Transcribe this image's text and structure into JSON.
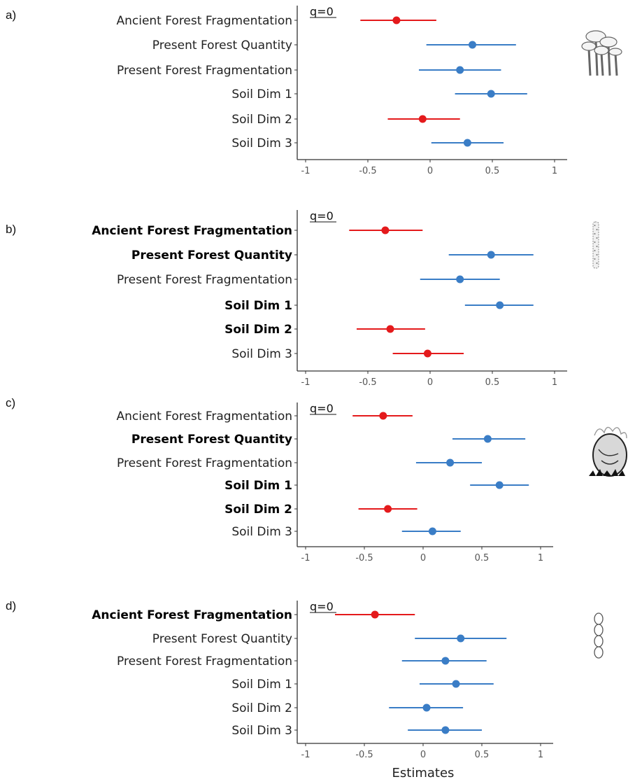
{
  "chart_data": [
    {
      "panel": "a)",
      "type": "scatter",
      "annotation": "q=0",
      "xlim": [
        -1.1,
        1.1
      ],
      "xticks": [
        "-1",
        "-0.5",
        "0",
        "0.5",
        "1"
      ],
      "icon": "mushroom-cluster-icon",
      "series": [
        {
          "label": "Ancient Forest Fragmentation",
          "estimate": -0.27,
          "low": -0.56,
          "high": 0.05,
          "sign": "neg",
          "bold": false
        },
        {
          "label": "Present Forest Quantity",
          "estimate": 0.34,
          "low": -0.03,
          "high": 0.69,
          "sign": "pos",
          "bold": false
        },
        {
          "label": "Present Forest Fragmentation",
          "estimate": 0.24,
          "low": -0.09,
          "high": 0.57,
          "sign": "pos",
          "bold": false
        },
        {
          "label": "Soil Dim 1",
          "estimate": 0.49,
          "low": 0.2,
          "high": 0.78,
          "sign": "pos",
          "bold": false
        },
        {
          "label": "Soil Dim 2",
          "estimate": -0.06,
          "low": -0.34,
          "high": 0.24,
          "sign": "neg",
          "bold": false
        },
        {
          "label": "Soil Dim 3",
          "estimate": 0.3,
          "low": 0.01,
          "high": 0.59,
          "sign": "pos",
          "bold": false
        }
      ]
    },
    {
      "panel": "b)",
      "type": "scatter",
      "annotation": "q=0",
      "xlim": [
        -1.1,
        1.1
      ],
      "xticks": [
        "-1",
        "-0.5",
        "0",
        "0.5",
        "1"
      ],
      "icon": "lichen-strip-icon",
      "series": [
        {
          "label": "Ancient Forest Fragmentation",
          "estimate": -0.36,
          "low": -0.65,
          "high": -0.06,
          "sign": "neg",
          "bold": true
        },
        {
          "label": "Present Forest Quantity",
          "estimate": 0.49,
          "low": 0.15,
          "high": 0.83,
          "sign": "pos",
          "bold": true
        },
        {
          "label": "Present Forest Fragmentation",
          "estimate": 0.24,
          "low": -0.08,
          "high": 0.56,
          "sign": "pos",
          "bold": false
        },
        {
          "label": "Soil Dim 1",
          "estimate": 0.56,
          "low": 0.28,
          "high": 0.83,
          "sign": "pos",
          "bold": true
        },
        {
          "label": "Soil Dim 2",
          "estimate": -0.32,
          "low": -0.59,
          "high": -0.04,
          "sign": "neg",
          "bold": true
        },
        {
          "label": "Soil Dim 3",
          "estimate": -0.02,
          "low": -0.3,
          "high": 0.27,
          "sign": "neg",
          "bold": false
        }
      ]
    },
    {
      "panel": "c)",
      "type": "scatter",
      "annotation": "q=0",
      "xlim": [
        -1.1,
        1.1
      ],
      "xticks": [
        "-1",
        "-0.5",
        "0",
        "0.5",
        "1"
      ],
      "icon": "puffball-fungus-icon",
      "series": [
        {
          "label": "Ancient Forest Fragmentation",
          "estimate": -0.34,
          "low": -0.6,
          "high": -0.09,
          "sign": "neg",
          "bold": false
        },
        {
          "label": "Present Forest Quantity",
          "estimate": 0.55,
          "low": 0.25,
          "high": 0.87,
          "sign": "pos",
          "bold": true
        },
        {
          "label": "Present Forest Fragmentation",
          "estimate": 0.23,
          "low": -0.06,
          "high": 0.5,
          "sign": "pos",
          "bold": false
        },
        {
          "label": "Soil Dim 1",
          "estimate": 0.65,
          "low": 0.4,
          "high": 0.9,
          "sign": "pos",
          "bold": true
        },
        {
          "label": "Soil Dim 2",
          "estimate": -0.3,
          "low": -0.55,
          "high": -0.05,
          "sign": "neg",
          "bold": true
        },
        {
          "label": "Soil Dim 3",
          "estimate": 0.08,
          "low": -0.18,
          "high": 0.32,
          "sign": "pos",
          "bold": false
        }
      ]
    },
    {
      "panel": "d)",
      "type": "scatter",
      "annotation": "q=0",
      "xlim": [
        -1.1,
        1.1
      ],
      "xticks": [
        "-1",
        "-0.5",
        "0",
        "0.5",
        "1"
      ],
      "xlabel": "Estimates",
      "icon": "spore-chain-icon",
      "series": [
        {
          "label": "Ancient Forest Fragmentation",
          "estimate": -0.41,
          "low": -0.75,
          "high": -0.07,
          "sign": "neg",
          "bold": true
        },
        {
          "label": "Present Forest Quantity",
          "estimate": 0.32,
          "low": -0.07,
          "high": 0.71,
          "sign": "pos",
          "bold": false
        },
        {
          "label": "Present Forest Fragmentation",
          "estimate": 0.19,
          "low": -0.18,
          "high": 0.54,
          "sign": "pos",
          "bold": false
        },
        {
          "label": "Soil Dim 1",
          "estimate": 0.28,
          "low": -0.03,
          "high": 0.6,
          "sign": "pos",
          "bold": false
        },
        {
          "label": "Soil Dim 2",
          "estimate": 0.03,
          "low": -0.29,
          "high": 0.34,
          "sign": "pos",
          "bold": false
        },
        {
          "label": "Soil Dim 3",
          "estimate": 0.19,
          "low": -0.13,
          "high": 0.5,
          "sign": "pos",
          "bold": false
        }
      ]
    }
  ],
  "colors": {
    "negative": "#e41a1c",
    "positive": "#3a7dc6",
    "axis": "#333333"
  }
}
